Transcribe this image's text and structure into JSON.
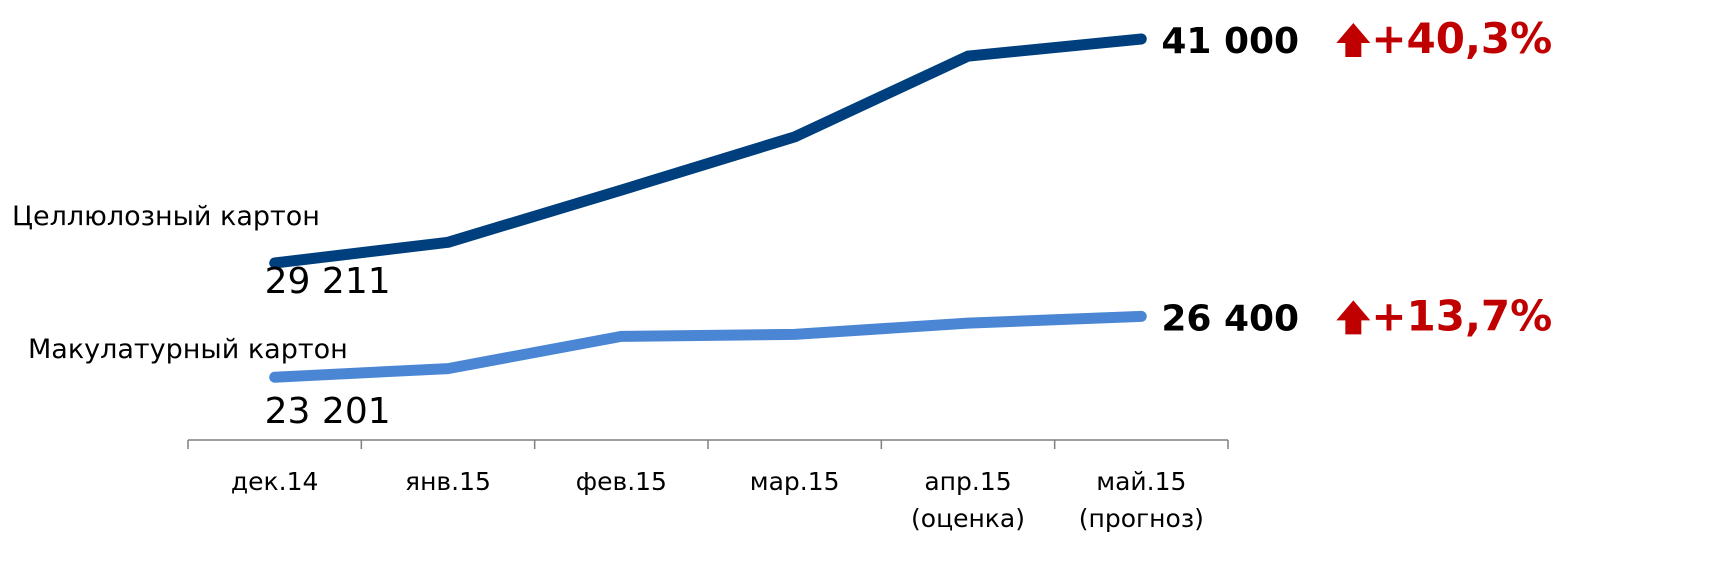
{
  "chart_data": {
    "type": "line",
    "categories": [
      "дек.14",
      "янв.15",
      "фев.15",
      "мар.15",
      "апр.15",
      "май.15"
    ],
    "category_sublabels": [
      "",
      "",
      "",
      "",
      "(оценка)",
      "(прогноз)"
    ],
    "ylim": [
      22000,
      42000
    ],
    "grid": false,
    "series": [
      {
        "name": "Целлюлозный картон",
        "color": "#003f7d",
        "values": [
          29211,
          30300,
          33050,
          35850,
          40100,
          41000
        ],
        "start_label": "29 211",
        "end_label": "41 000",
        "change": "+40,3%"
      },
      {
        "name": "Макулатурный картон",
        "color": "#4a86d4",
        "values": [
          23201,
          23650,
          25350,
          25450,
          26050,
          26400
        ],
        "start_label": "23 201",
        "end_label": "26 400",
        "change": "+13,7%"
      }
    ],
    "change_color": "#c00000",
    "change_icon": "arrow-up-icon"
  }
}
